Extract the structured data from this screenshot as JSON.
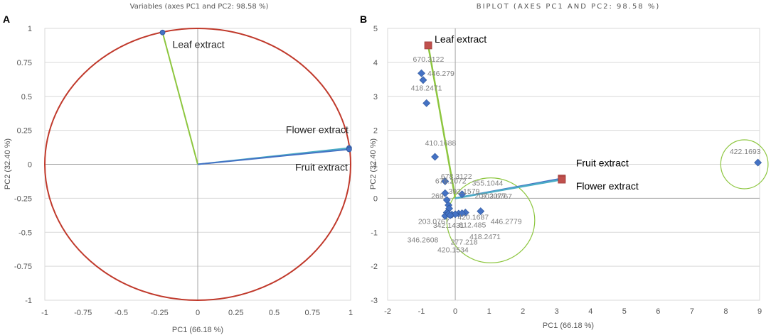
{
  "chart_data": [
    {
      "panel": "A",
      "type": "scatter",
      "title": "Variables (axes PC1 and PC2: 98.58 %)",
      "xlabel": "PC1 (66.18 %)",
      "ylabel": "PC2 (32.40 %)",
      "xlim": [
        -1,
        1
      ],
      "ylim": [
        -1,
        1
      ],
      "xticks": [
        "-1",
        "-0.75",
        "-0.5",
        "-0.25",
        "0",
        "0.25",
        "0.5",
        "0.75",
        "1"
      ],
      "yticks": [
        "1",
        "0.75",
        "0.5",
        "0.25",
        "0",
        "-0.25",
        "-0.5",
        "-0.75",
        "-1"
      ],
      "circle": {
        "radius": 1,
        "color": "#c0392b"
      },
      "vectors": [
        {
          "name": "Leaf extract",
          "x": -0.23,
          "y": 0.97,
          "color": "#8dc63f"
        },
        {
          "name": "Flower extract",
          "x": 0.99,
          "y": 0.12,
          "color": "#4bacc6"
        },
        {
          "name": "Fruit extract",
          "x": 0.99,
          "y": 0.11,
          "color": "#4472c4"
        }
      ]
    },
    {
      "panel": "B",
      "type": "scatter",
      "title": "BIPLOT (AXES PC1 AND PC2: 98.58 %)",
      "xlabel": "PC1 (66.18 %)",
      "ylabel": "PC2 (32.40 %)",
      "xlim": [
        -2,
        9
      ],
      "ylim": [
        -3,
        5
      ],
      "xticks": [
        "-2",
        "-1",
        "0",
        "1",
        "2",
        "3",
        "4",
        "5",
        "6",
        "7",
        "8",
        "9"
      ],
      "yticks": [
        "5",
        "4",
        "3",
        "2",
        "1",
        "0",
        "-1",
        "-2",
        "-3"
      ],
      "vectors": [
        {
          "name": "Leaf extract",
          "x": -0.8,
          "y": 4.5,
          "color": "#8dc63f"
        },
        {
          "name": "Fruit extract",
          "x": 3.15,
          "y": 0.58,
          "color": "#4472c4"
        },
        {
          "name": "Flower extract",
          "x": 3.15,
          "y": 0.55,
          "color": "#4bacc6"
        }
      ],
      "points": [
        {
          "label": "670.3122",
          "x": -1.0,
          "y": 3.68
        },
        {
          "label": "446.279",
          "x": -0.95,
          "y": 3.48
        },
        {
          "label": "418.2471",
          "x": -0.85,
          "y": 2.8
        },
        {
          "label": "410.1688",
          "x": -0.6,
          "y": 1.22
        },
        {
          "label": "422.1693",
          "x": 8.95,
          "y": 1.05
        },
        {
          "label": "678.2072",
          "x": -0.3,
          "y": 0.5
        },
        {
          "label": "355.1044",
          "x": 0.2,
          "y": 0.12
        },
        {
          "label": "678.3122",
          "x": -0.3,
          "y": 0.15
        },
        {
          "label": "203.0767",
          "x": -0.25,
          "y": -0.05
        },
        {
          "label": "392.1579",
          "x": -0.2,
          "y": -0.2
        },
        {
          "label": "207.2077",
          "x": -0.18,
          "y": -0.3
        },
        {
          "label": "269",
          "x": -0.25,
          "y": -0.42
        },
        {
          "label": "203.0767",
          "x": -0.3,
          "y": -0.52
        },
        {
          "label": "420.1687",
          "x": -0.1,
          "y": -0.48
        },
        {
          "label": "342.1431",
          "x": 0.1,
          "y": -0.45
        },
        {
          "label": "812.485",
          "x": 0.3,
          "y": -0.42
        },
        {
          "label": "446.2779",
          "x": 0.75,
          "y": -0.38
        },
        {
          "label": "346.2608",
          "x": -0.2,
          "y": -0.46
        },
        {
          "label": "418.2471",
          "x": 0.0,
          "y": -0.47
        },
        {
          "label": "277.218",
          "x": 0.2,
          "y": -0.44
        },
        {
          "label": "420.1534",
          "x": -0.15,
          "y": -0.5
        }
      ],
      "annotation_circles": [
        {
          "cx": 1.05,
          "cy": -0.65,
          "rx": 1.3,
          "ry": 1.25,
          "color": "#8dc63f"
        },
        {
          "cx": 8.55,
          "cy": 1.0,
          "rx": 0.7,
          "ry": 0.72,
          "color": "#8dc63f"
        }
      ]
    }
  ],
  "colors": {
    "point": "#4472c4",
    "variable_marker": "#c0504d",
    "circle": "#c0392b"
  }
}
